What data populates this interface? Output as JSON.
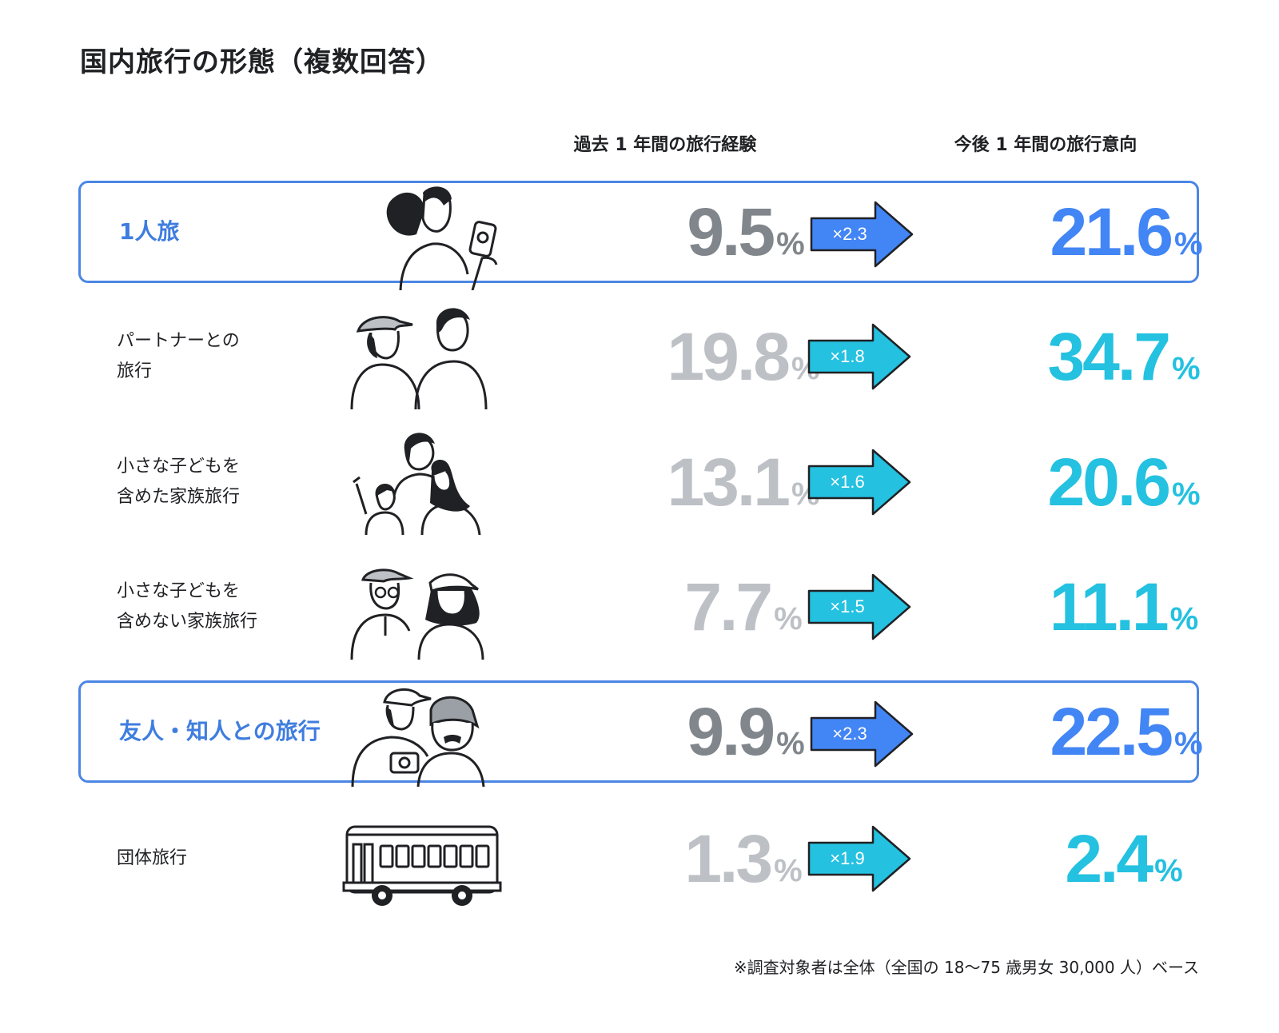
{
  "title": "国内旅行の形態（複数回答）",
  "footnote": "※調査対象者は全体（全国の 18〜75 歳男女 30,000 人）ベース",
  "colors": {
    "highlight": "#3f7ddf",
    "border": "#4b86e5",
    "past_highlight": "#80868b",
    "past_normal": "#bdc1c6",
    "future_highlight": "#4285f4",
    "future_normal": "#24c1e0",
    "arrow_highlight": "#4285f4",
    "arrow_normal": "#24c1e0"
  },
  "chart_data": {
    "type": "table",
    "title": "国内旅行の形態（複数回答）",
    "columns": [
      "過去 1 年間の旅行経験",
      "今後 1 年間の旅行意向"
    ],
    "unit": "%",
    "rows": [
      {
        "label_lines": [
          "1人旅"
        ],
        "highlight": true,
        "icon": "solo-traveler-icon",
        "past": "9.5",
        "multiplier": "×2.3",
        "future": "21.6"
      },
      {
        "label_lines": [
          "パートナーとの",
          "旅行"
        ],
        "highlight": false,
        "icon": "couple-icon",
        "past": "19.8",
        "multiplier": "×1.8",
        "future": "34.7"
      },
      {
        "label_lines": [
          "小さな子どもを",
          "含めた家族旅行"
        ],
        "highlight": false,
        "icon": "family-with-child-icon",
        "past": "13.1",
        "multiplier": "×1.6",
        "future": "20.6"
      },
      {
        "label_lines": [
          "小さな子どもを",
          "含めない家族旅行"
        ],
        "highlight": false,
        "icon": "family-adults-icon",
        "past": "7.7",
        "multiplier": "×1.5",
        "future": "11.1"
      },
      {
        "label_lines": [
          "友人・知人との旅行"
        ],
        "highlight": true,
        "icon": "friends-icon",
        "past": "9.9",
        "multiplier": "×2.3",
        "future": "22.5"
      },
      {
        "label_lines": [
          "団体旅行"
        ],
        "highlight": false,
        "icon": "bus-icon",
        "past": "1.3",
        "multiplier": "×1.9",
        "future": "2.4"
      }
    ]
  }
}
